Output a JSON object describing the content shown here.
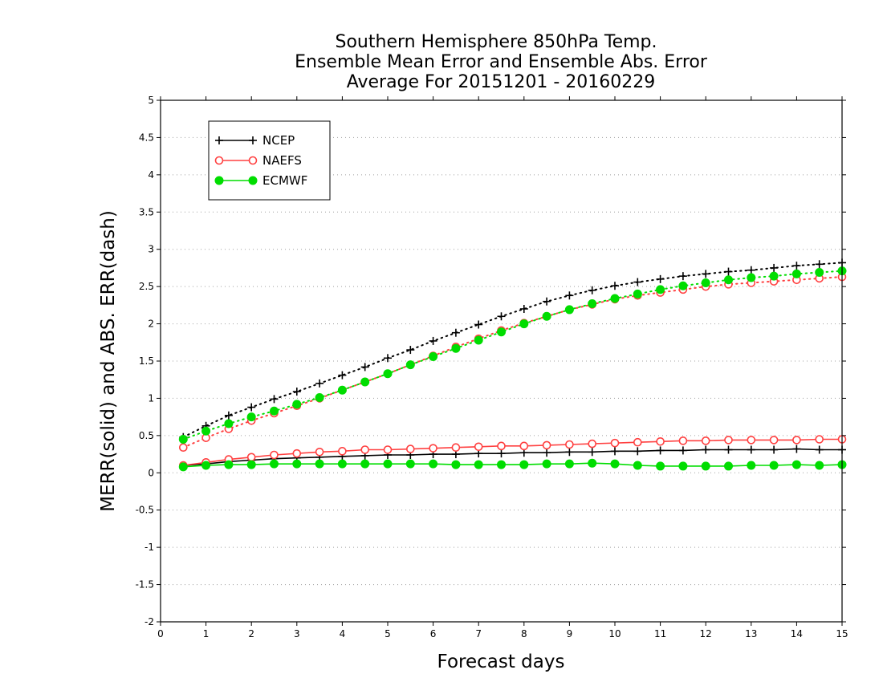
{
  "chart_data": {
    "type": "line",
    "title": [
      "Southern Hemisphere 850hPa Temp.",
      "Ensemble Mean Error and Ensemble Abs. Error",
      "Average For 20151201 - 20160229"
    ],
    "xlabel": "Forecast days",
    "ylabel": "MERR(solid) and ABS. ERR(dash)",
    "xlim": [
      0,
      15
    ],
    "ylim": [
      -2,
      5
    ],
    "xticks": [
      0,
      1,
      2,
      3,
      4,
      5,
      6,
      7,
      8,
      9,
      10,
      11,
      12,
      13,
      14,
      15
    ],
    "yticks": [
      -2,
      -1.5,
      -1,
      -0.5,
      0,
      0.5,
      1,
      1.5,
      2,
      2.5,
      3,
      3.5,
      4,
      4.5,
      5
    ],
    "ytick_labels": [
      "-2",
      "-1.5",
      "-1",
      "-0.5",
      "0",
      "0.5",
      "1",
      "1.5",
      "2",
      "2.5",
      "3",
      "3.5",
      "4",
      "4.5",
      "5"
    ],
    "grid": "horizontal-dotted",
    "legend_position": "top-left",
    "x": [
      0.5,
      1,
      1.5,
      2,
      2.5,
      3,
      3.5,
      4,
      4.5,
      5,
      5.5,
      6,
      6.5,
      7,
      7.5,
      8,
      8.5,
      9,
      9.5,
      10,
      10.5,
      11,
      11.5,
      12,
      12.5,
      13,
      13.5,
      14,
      14.5,
      15
    ],
    "series": [
      {
        "name": "NCEP",
        "color": "#000000",
        "marker": "plus",
        "merr": [
          0.1,
          0.12,
          0.15,
          0.17,
          0.19,
          0.2,
          0.21,
          0.22,
          0.23,
          0.24,
          0.24,
          0.25,
          0.25,
          0.26,
          0.26,
          0.27,
          0.27,
          0.28,
          0.28,
          0.29,
          0.29,
          0.3,
          0.3,
          0.31,
          0.31,
          0.31,
          0.31,
          0.32,
          0.31,
          0.31
        ],
        "abs_err": [
          0.48,
          0.63,
          0.77,
          0.88,
          0.99,
          1.09,
          1.2,
          1.31,
          1.42,
          1.54,
          1.65,
          1.77,
          1.88,
          1.99,
          2.1,
          2.2,
          2.3,
          2.38,
          2.45,
          2.51,
          2.56,
          2.6,
          2.64,
          2.67,
          2.7,
          2.72,
          2.75,
          2.78,
          2.8,
          2.82
        ]
      },
      {
        "name": "NAEFS",
        "color": "#ff4040",
        "marker": "open-circle",
        "merr": [
          0.1,
          0.14,
          0.18,
          0.21,
          0.24,
          0.26,
          0.28,
          0.29,
          0.31,
          0.31,
          0.32,
          0.33,
          0.34,
          0.35,
          0.36,
          0.36,
          0.37,
          0.38,
          0.39,
          0.4,
          0.41,
          0.42,
          0.43,
          0.43,
          0.44,
          0.44,
          0.44,
          0.44,
          0.45,
          0.45
        ],
        "abs_err": [
          0.34,
          0.47,
          0.59,
          0.7,
          0.8,
          0.9,
          1.0,
          1.11,
          1.22,
          1.33,
          1.45,
          1.57,
          1.69,
          1.8,
          1.91,
          2.01,
          2.1,
          2.19,
          2.26,
          2.33,
          2.38,
          2.42,
          2.46,
          2.5,
          2.53,
          2.55,
          2.57,
          2.59,
          2.61,
          2.63
        ]
      },
      {
        "name": "ECMWF",
        "color": "#00dd00",
        "marker": "filled-circle",
        "merr": [
          0.08,
          0.1,
          0.11,
          0.11,
          0.12,
          0.12,
          0.12,
          0.12,
          0.12,
          0.12,
          0.12,
          0.12,
          0.11,
          0.11,
          0.11,
          0.11,
          0.12,
          0.12,
          0.13,
          0.12,
          0.1,
          0.09,
          0.09,
          0.09,
          0.09,
          0.1,
          0.1,
          0.11,
          0.1,
          0.11
        ],
        "abs_err": [
          0.45,
          0.56,
          0.66,
          0.75,
          0.83,
          0.92,
          1.01,
          1.11,
          1.22,
          1.33,
          1.45,
          1.56,
          1.67,
          1.78,
          1.89,
          2.0,
          2.1,
          2.19,
          2.27,
          2.34,
          2.4,
          2.46,
          2.51,
          2.55,
          2.59,
          2.62,
          2.64,
          2.67,
          2.69,
          2.71
        ]
      }
    ]
  }
}
